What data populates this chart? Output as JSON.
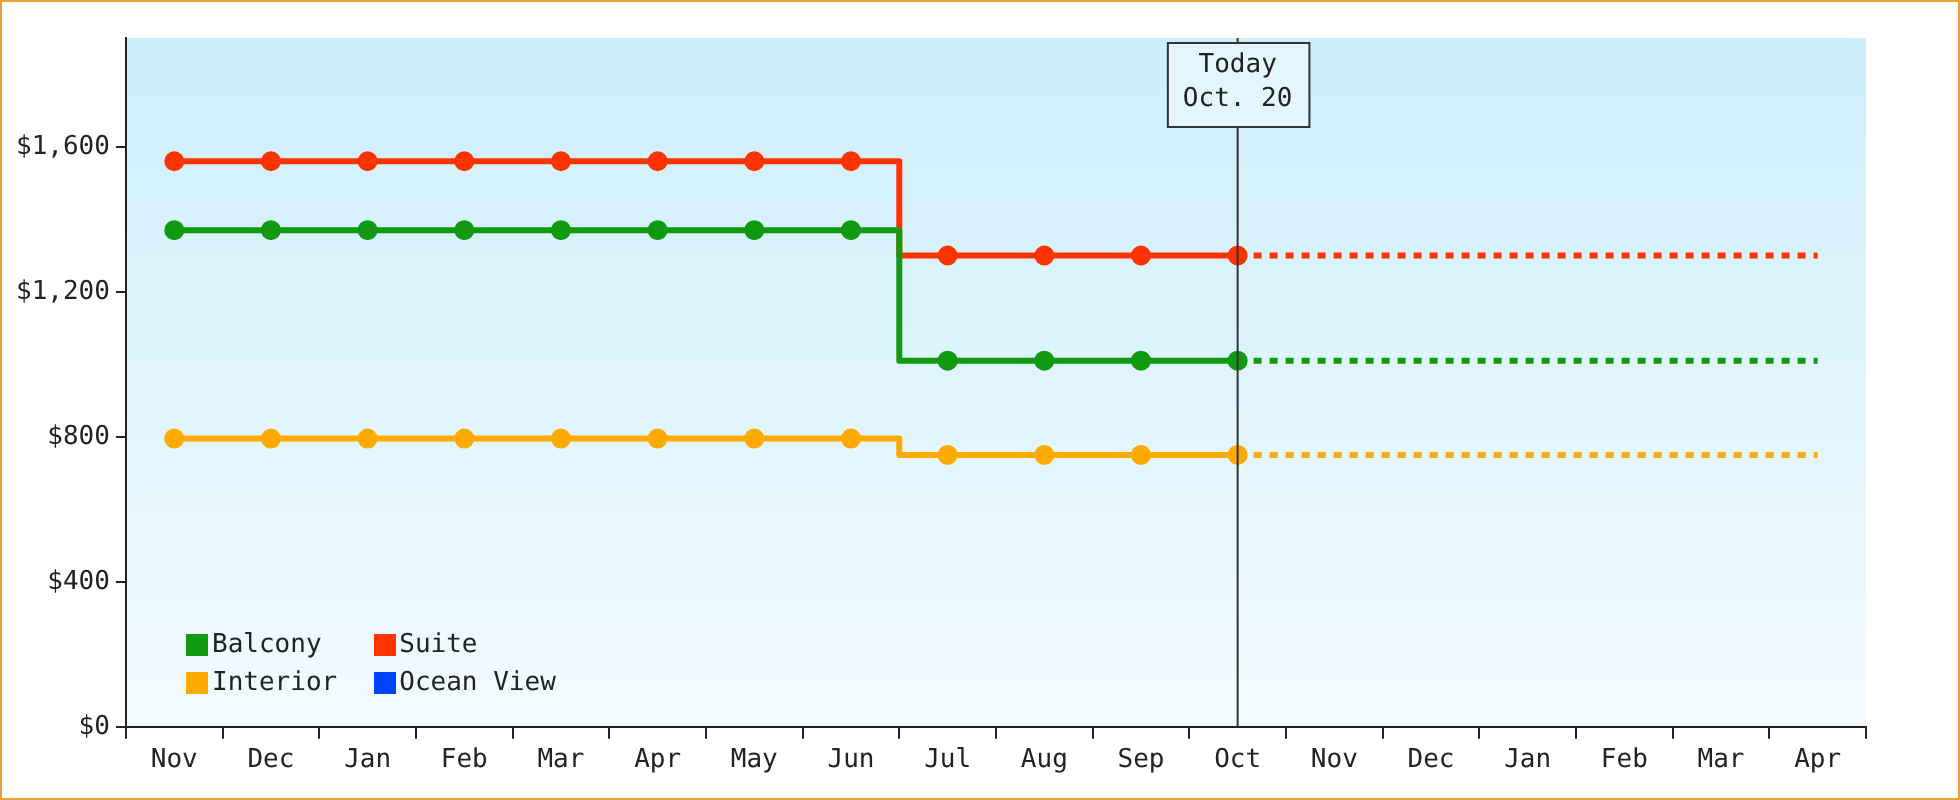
{
  "chart_data": {
    "type": "step",
    "categories": [
      "Nov",
      "Dec",
      "Jan",
      "Feb",
      "Mar",
      "Apr",
      "May",
      "Jun",
      "Jul",
      "Aug",
      "Sep",
      "Oct",
      "Nov",
      "Dec",
      "Jan",
      "Feb",
      "Mar",
      "Apr"
    ],
    "series": [
      {
        "name": "Balcony",
        "color": "#119911",
        "values": [
          1370,
          1370,
          1370,
          1370,
          1370,
          1370,
          1370,
          1370,
          1010,
          1010,
          1010,
          1010,
          null,
          null,
          null,
          null,
          null,
          null
        ]
      },
      {
        "name": "Suite",
        "color": "#ff3300",
        "values": [
          1560,
          1560,
          1560,
          1560,
          1560,
          1560,
          1560,
          1560,
          1300,
          1300,
          1300,
          1300,
          null,
          null,
          null,
          null,
          null,
          null
        ]
      },
      {
        "name": "Interior",
        "color": "#ffaa00",
        "values": [
          795,
          795,
          795,
          795,
          795,
          795,
          795,
          795,
          750,
          750,
          750,
          750,
          null,
          null,
          null,
          null,
          null,
          null
        ]
      },
      {
        "name": "Ocean View",
        "color": "#0044ff",
        "values": [
          null,
          null,
          null,
          null,
          null,
          null,
          null,
          null,
          null,
          null,
          null,
          null,
          null,
          null,
          null,
          null,
          null,
          null
        ]
      },
      {
        "color": "#119911",
        "line_style": "dashed",
        "marker": "none",
        "values": [
          null,
          null,
          null,
          null,
          null,
          null,
          null,
          null,
          null,
          null,
          null,
          1010,
          1010,
          1010,
          1010,
          1010,
          1010,
          1010
        ]
      },
      {
        "color": "#ff3300",
        "line_style": "dashed",
        "marker": "none",
        "values": [
          null,
          null,
          null,
          null,
          null,
          null,
          null,
          null,
          null,
          null,
          null,
          1300,
          1300,
          1300,
          1300,
          1300,
          1300,
          1300
        ]
      },
      {
        "color": "#ffaa00",
        "line_style": "dashed",
        "marker": "none",
        "values": [
          null,
          null,
          null,
          null,
          null,
          null,
          null,
          null,
          null,
          null,
          null,
          750,
          750,
          750,
          750,
          750,
          750,
          750
        ]
      }
    ],
    "ylim": [
      0,
      1900
    ],
    "yticks": [
      {
        "value": 0,
        "label": "$0"
      },
      {
        "value": 400,
        "label": "$400"
      },
      {
        "value": 800,
        "label": "$800"
      },
      {
        "value": 1200,
        "label": "$1,200"
      },
      {
        "value": 1600,
        "label": "$1,600"
      }
    ],
    "ref_lines": [
      {
        "axis": "x",
        "value": "Oct",
        "label": "Today\nOct. 20",
        "color": "#333333"
      }
    ],
    "grid": false,
    "legend": "bottom left",
    "marker": "circle",
    "line_style": "solid"
  }
}
